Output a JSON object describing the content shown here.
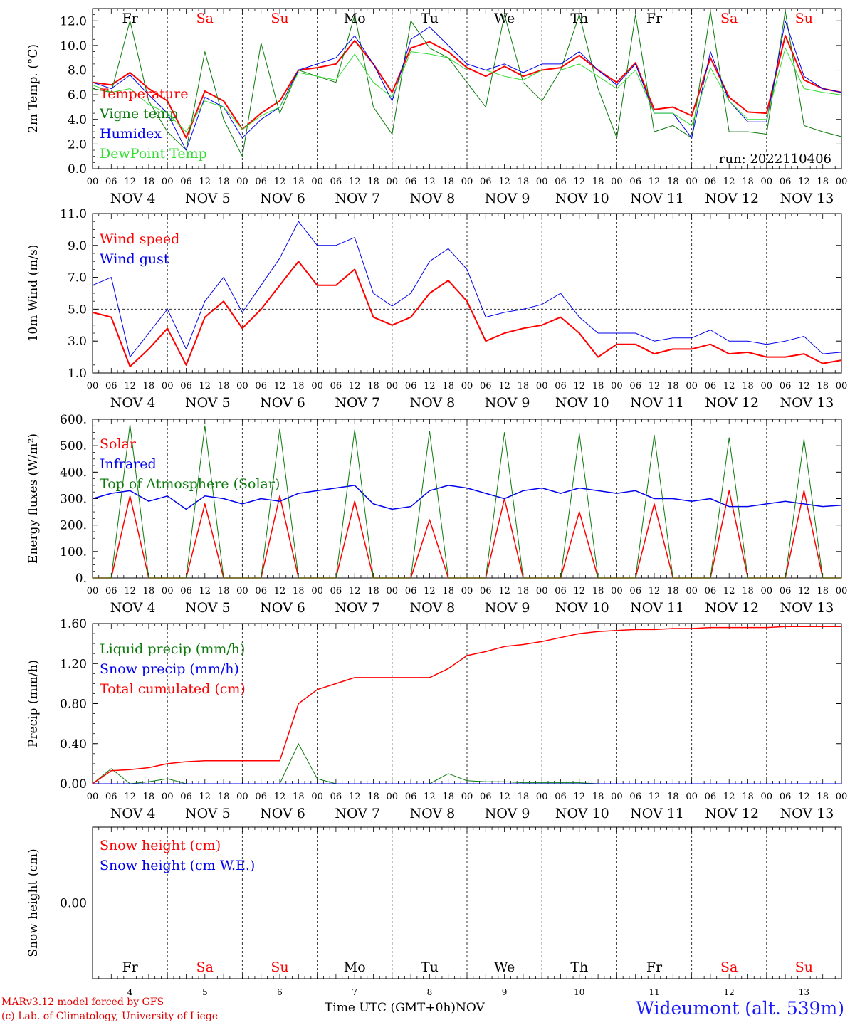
{
  "colors": {
    "red": "#ff0000",
    "darkgreen": "#0b7a0b",
    "blue": "#0000ee",
    "lightgreen": "#33dd33",
    "purple": "#8000a0",
    "gray": "#555555"
  },
  "days": {
    "abbr": [
      "Fr",
      "Sa",
      "Su",
      "Mo",
      "Tu",
      "We",
      "Th",
      "Fr",
      "Sa",
      "Su"
    ],
    "abbr_colors": [
      "#000000",
      "#ff0000",
      "#ff0000",
      "#000000",
      "#000000",
      "#000000",
      "#000000",
      "#000000",
      "#ff0000",
      "#ff0000"
    ],
    "dates": [
      "NOV  4",
      "NOV  5",
      "NOV  6",
      "NOV  7",
      "NOV  8",
      "NOV  9",
      "NOV 10",
      "NOV 11",
      "NOV 12",
      "NOV 13"
    ],
    "nums": [
      "4",
      "5",
      "6",
      "7",
      "8",
      "9",
      "10",
      "11",
      "12",
      "13"
    ],
    "hours": [
      "00",
      "06",
      "12",
      "18"
    ],
    "last_hour": "00"
  },
  "run_label": "run: 2022110406",
  "footer": {
    "model": "MARv3.12 model forced by GFS",
    "credit": "(c) Lab. of Climatology, University of Liege",
    "xlabel": "Time UTC (GMT+0h)",
    "month": "NOV",
    "station": "Wideumont (alt. 539m)"
  },
  "chart_data": [
    {
      "type": "line",
      "ylabel": "2m Temp. (°C)",
      "ylim": [
        0,
        13
      ],
      "yticks": [
        "0.0",
        "2.0",
        "4.0",
        "6.0",
        "8.0",
        "10.0",
        "12.0"
      ],
      "ytick_values": [
        0,
        2,
        4,
        6,
        8,
        10,
        12
      ],
      "x_hours": [
        0,
        6,
        12,
        18,
        24,
        30,
        36,
        42,
        48,
        54,
        60,
        66,
        72,
        78,
        84,
        90,
        96,
        102,
        108,
        114,
        120,
        126,
        132,
        138,
        144,
        150,
        156,
        162,
        168,
        174,
        180,
        186,
        192,
        198,
        204,
        210,
        216,
        222,
        228,
        234,
        240
      ],
      "series": [
        {
          "name": "Temperature",
          "color": "#ff0000",
          "width": 2,
          "values": [
            7.0,
            6.8,
            7.8,
            6.5,
            5.5,
            2.5,
            6.3,
            5.5,
            3.2,
            4.5,
            5.5,
            8.0,
            8.2,
            8.5,
            10.4,
            8.5,
            6.2,
            9.8,
            10.3,
            9.5,
            8.2,
            7.5,
            8.3,
            7.5,
            8.0,
            8.2,
            9.2,
            8.0,
            7.0,
            8.6,
            4.8,
            5.0,
            4.3,
            9.0,
            5.8,
            4.6,
            4.5,
            10.8,
            7.2,
            6.5,
            6.2
          ]
        },
        {
          "name": "Vigne temp",
          "color": "#0b7a0b",
          "width": 1,
          "values": [
            6.5,
            6.2,
            12.0,
            5.5,
            3.0,
            1.5,
            9.5,
            4.0,
            1.0,
            10.2,
            4.5,
            8.0,
            7.5,
            7.0,
            12.5,
            5.0,
            2.8,
            12.0,
            9.8,
            9.0,
            7.0,
            5.0,
            12.5,
            7.0,
            5.5,
            8.0,
            12.5,
            6.5,
            2.5,
            12.5,
            3.0,
            3.5,
            2.5,
            12.8,
            3.0,
            3.0,
            2.8,
            12.8,
            3.5,
            3.0,
            2.6
          ]
        },
        {
          "name": "Humidex",
          "color": "#0000ee",
          "width": 1,
          "values": [
            7.0,
            6.5,
            7.6,
            6.0,
            4.5,
            1.5,
            5.8,
            5.0,
            2.5,
            4.0,
            5.0,
            8.0,
            8.5,
            9.0,
            10.8,
            8.5,
            5.5,
            10.5,
            11.5,
            10.0,
            8.5,
            8.0,
            8.5,
            7.8,
            8.5,
            8.5,
            9.5,
            8.0,
            6.8,
            8.5,
            4.5,
            4.5,
            2.5,
            9.5,
            5.5,
            3.8,
            3.8,
            12.0,
            7.5,
            6.5,
            6.2
          ]
        },
        {
          "name": "DewPoint Temp",
          "color": "#33dd33",
          "width": 1,
          "values": [
            6.8,
            6.2,
            6.5,
            5.2,
            4.5,
            3.0,
            5.5,
            5.0,
            3.2,
            4.3,
            5.0,
            7.8,
            7.5,
            7.2,
            9.3,
            7.0,
            5.8,
            9.5,
            9.3,
            9.0,
            8.0,
            8.0,
            7.5,
            7.2,
            8.0,
            8.0,
            8.5,
            7.5,
            6.5,
            8.0,
            4.5,
            4.5,
            3.5,
            8.2,
            5.5,
            4.0,
            4.0,
            9.8,
            6.5,
            6.2,
            6.0
          ]
        }
      ],
      "legend": [
        "Temperature",
        "Vigne temp",
        "Humidex",
        "DewPoint Temp"
      ]
    },
    {
      "type": "line",
      "ylabel": "10m Wind (m/s)",
      "ylim": [
        1,
        11
      ],
      "yticks": [
        "1.0",
        "3.0",
        "5.0",
        "7.0",
        "9.0",
        "11.0"
      ],
      "ytick_values": [
        1,
        3,
        5,
        7,
        9,
        11
      ],
      "x_hours": [
        0,
        6,
        12,
        18,
        24,
        30,
        36,
        42,
        48,
        54,
        60,
        66,
        72,
        78,
        84,
        90,
        96,
        102,
        108,
        114,
        120,
        126,
        132,
        138,
        144,
        150,
        156,
        162,
        168,
        174,
        180,
        186,
        192,
        198,
        204,
        210,
        216,
        222,
        228,
        234,
        240
      ],
      "series": [
        {
          "name": "Wind speed",
          "color": "#ff0000",
          "width": 2,
          "values": [
            4.8,
            4.5,
            1.4,
            2.5,
            3.8,
            1.5,
            4.5,
            5.5,
            3.8,
            5.0,
            6.5,
            8.0,
            6.5,
            6.5,
            7.5,
            4.5,
            4.0,
            4.5,
            6.0,
            6.8,
            5.5,
            3.0,
            3.5,
            3.8,
            4.0,
            4.5,
            3.5,
            2.0,
            2.8,
            2.8,
            2.2,
            2.5,
            2.5,
            2.8,
            2.2,
            2.3,
            2.0,
            2.0,
            2.2,
            1.6,
            1.8
          ]
        },
        {
          "name": "Wind gust",
          "color": "#0000ee",
          "width": 1,
          "values": [
            6.5,
            7.0,
            2.0,
            3.5,
            5.0,
            2.5,
            5.5,
            7.0,
            4.8,
            6.5,
            8.2,
            10.5,
            9.0,
            9.0,
            9.5,
            6.0,
            5.2,
            6.0,
            8.0,
            8.8,
            7.5,
            4.5,
            4.8,
            5.0,
            5.3,
            6.0,
            4.5,
            3.5,
            3.5,
            3.5,
            3.0,
            3.2,
            3.2,
            3.7,
            3.0,
            3.0,
            2.8,
            3.0,
            3.3,
            2.2,
            2.3
          ]
        }
      ],
      "reference_line": 5.0,
      "legend": [
        "Wind speed",
        "Wind gust"
      ]
    },
    {
      "type": "line",
      "ylabel": "Energy fluxes (W/m²)",
      "ylim": [
        0,
        600
      ],
      "yticks": [
        "0.",
        "100.",
        "200.",
        "300.",
        "400.",
        "500.",
        "600."
      ],
      "ytick_values": [
        0,
        100,
        200,
        300,
        400,
        500,
        600
      ],
      "x_hours": [
        0,
        6,
        12,
        18,
        24,
        30,
        36,
        42,
        48,
        54,
        60,
        66,
        72,
        78,
        84,
        90,
        96,
        102,
        108,
        114,
        120,
        126,
        132,
        138,
        144,
        150,
        156,
        162,
        168,
        174,
        180,
        186,
        192,
        198,
        204,
        210,
        216,
        222,
        228,
        234,
        240
      ],
      "series": [
        {
          "name": "Solar",
          "color": "#ff0000",
          "width": 1.5,
          "values": [
            0,
            0,
            310,
            0,
            0,
            0,
            280,
            0,
            0,
            0,
            310,
            0,
            0,
            0,
            290,
            0,
            0,
            0,
            220,
            0,
            0,
            0,
            300,
            0,
            0,
            0,
            250,
            0,
            0,
            0,
            280,
            0,
            0,
            0,
            330,
            0,
            0,
            0,
            330,
            0,
            0
          ]
        },
        {
          "name": "Infrared",
          "color": "#0000ee",
          "width": 1.5,
          "values": [
            300,
            320,
            330,
            290,
            310,
            260,
            310,
            300,
            280,
            300,
            290,
            320,
            330,
            340,
            350,
            280,
            260,
            270,
            330,
            350,
            340,
            320,
            300,
            330,
            340,
            320,
            340,
            330,
            320,
            330,
            300,
            300,
            290,
            300,
            270,
            270,
            280,
            290,
            280,
            270,
            275
          ]
        },
        {
          "name": "Top of Atmosphere (Solar)",
          "color": "#0b7a0b",
          "width": 1,
          "values": [
            0,
            0,
            580,
            0,
            0,
            0,
            575,
            0,
            0,
            0,
            565,
            0,
            0,
            0,
            560,
            0,
            0,
            0,
            555,
            0,
            0,
            0,
            550,
            0,
            0,
            0,
            545,
            0,
            0,
            0,
            540,
            0,
            0,
            0,
            530,
            0,
            0,
            0,
            525,
            0,
            0
          ]
        }
      ],
      "legend": [
        "Solar",
        "Infrared",
        "Top of Atmosphere (Solar)"
      ]
    },
    {
      "type": "line",
      "ylabel": "Precip (mm/h)",
      "ylim": [
        0,
        1.6
      ],
      "yticks": [
        "0.00",
        "0.40",
        "0.80",
        "1.20",
        "1.60"
      ],
      "ytick_values": [
        0,
        0.4,
        0.8,
        1.2,
        1.6
      ],
      "x_hours": [
        0,
        6,
        12,
        18,
        24,
        30,
        36,
        42,
        48,
        54,
        60,
        66,
        72,
        78,
        84,
        90,
        96,
        102,
        108,
        114,
        120,
        126,
        132,
        138,
        144,
        150,
        156,
        162,
        168,
        174,
        180,
        186,
        192,
        198,
        204,
        210,
        216,
        222,
        228,
        234,
        240
      ],
      "series": [
        {
          "name": "Liquid precip (mm/h)",
          "color": "#0b7a0b",
          "width": 1,
          "values": [
            0,
            0.15,
            0,
            0.02,
            0.05,
            0,
            0,
            0,
            0,
            0,
            0,
            0.4,
            0.05,
            0,
            0,
            0,
            0,
            0,
            0,
            0.1,
            0.03,
            0.02,
            0.02,
            0.01,
            0.01,
            0.01,
            0.01,
            0,
            0,
            0,
            0,
            0,
            0,
            0,
            0,
            0,
            0,
            0,
            0,
            0,
            0
          ]
        },
        {
          "name": "Snow precip (mm/h)",
          "color": "#0000ee",
          "width": 1,
          "values": [
            0,
            0,
            0,
            0,
            0,
            0,
            0,
            0,
            0,
            0,
            0,
            0,
            0,
            0,
            0,
            0,
            0,
            0,
            0,
            0,
            0,
            0,
            0,
            0,
            0,
            0,
            0,
            0,
            0,
            0,
            0,
            0,
            0,
            0,
            0,
            0,
            0,
            0,
            0,
            0,
            0
          ]
        },
        {
          "name": "Total cumulated (cm)",
          "color": "#ff0000",
          "width": 1.5,
          "values": [
            0,
            0.13,
            0.14,
            0.16,
            0.2,
            0.22,
            0.23,
            0.23,
            0.23,
            0.23,
            0.23,
            0.8,
            0.94,
            1.0,
            1.06,
            1.06,
            1.06,
            1.06,
            1.06,
            1.15,
            1.28,
            1.32,
            1.37,
            1.39,
            1.42,
            1.46,
            1.5,
            1.52,
            1.53,
            1.54,
            1.54,
            1.55,
            1.55,
            1.56,
            1.56,
            1.56,
            1.56,
            1.57,
            1.57,
            1.57,
            1.57
          ]
        }
      ],
      "legend": [
        "Liquid precip (mm/h)",
        "Snow precip (mm/h)",
        "Total cumulated (cm)"
      ]
    },
    {
      "type": "line",
      "ylabel": "Snow height (cm)",
      "ylim": [
        -1,
        1
      ],
      "yticks": [
        "0.00"
      ],
      "ytick_values": [
        0
      ],
      "x_hours": [
        0,
        240
      ],
      "series": [
        {
          "name": "Snow height (cm)",
          "color": "#ff0000",
          "width": 1,
          "values": [
            0,
            0
          ]
        },
        {
          "name": "Snow height (cm W.E.)",
          "color": "#8000a0",
          "width": 1,
          "values": [
            0,
            0
          ]
        }
      ],
      "legend": [
        "Snow height (cm)",
        "Snow height (cm W.E.)"
      ]
    }
  ]
}
